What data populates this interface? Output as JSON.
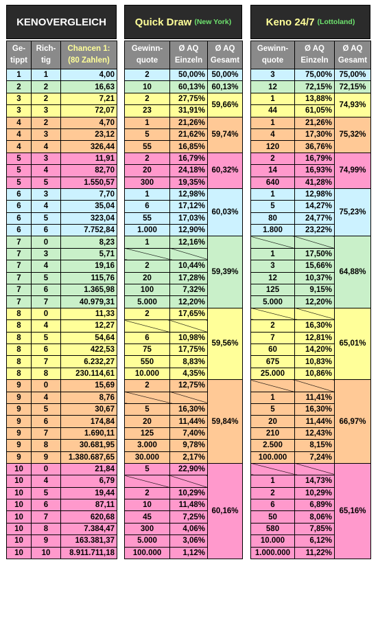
{
  "title_left": "KENOVERGLEICH",
  "qd_title": "Quick Draw",
  "qd_sub": "(New York)",
  "keno_title": "Keno 24/7",
  "keno_sub": "(Lottoland)",
  "headers": {
    "getippt": "Ge-\ntippt",
    "richtig": "Rich-\ntig",
    "chancen": "Chancen 1:\n(80 Zahlen)",
    "gewinnquote": "Gewinn-\nquote",
    "aq_einzeln": "Ø AQ\nEinzeln",
    "aq_gesamt": "Ø AQ\nGesamt"
  },
  "colors": {
    "1": "#ccf2ff",
    "2": "#c9f0c9",
    "3": "#ffff99",
    "4": "#ffc996",
    "5": "#ff99cc",
    "6": "#ccf2ff",
    "7": "#c9f0c9",
    "8": "#ffff99",
    "9": "#ffc996",
    "10": "#ff99cc"
  },
  "rows": [
    {
      "g": "1",
      "r": "1",
      "ch": "4,00",
      "qq": "2",
      "qa": "50,00%",
      "kq": "3",
      "ka": "75,00%"
    },
    {
      "g": "2",
      "r": "2",
      "ch": "16,63",
      "qq": "10",
      "qa": "60,13%",
      "kq": "12",
      "ka": "72,15%"
    },
    {
      "g": "3",
      "r": "2",
      "ch": "7,21",
      "qq": "2",
      "qa": "27,75%",
      "kq": "1",
      "ka": "13,88%"
    },
    {
      "g": "3",
      "r": "3",
      "ch": "72,07",
      "qq": "23",
      "qa": "31,91%",
      "kq": "44",
      "ka": "61,05%"
    },
    {
      "g": "4",
      "r": "2",
      "ch": "4,70",
      "qq": "1",
      "qa": "21,26%",
      "kq": "1",
      "ka": "21,26%"
    },
    {
      "g": "4",
      "r": "3",
      "ch": "23,12",
      "qq": "5",
      "qa": "21,62%",
      "kq": "4",
      "ka": "17,30%"
    },
    {
      "g": "4",
      "r": "4",
      "ch": "326,44",
      "qq": "55",
      "qa": "16,85%",
      "kq": "120",
      "ka": "36,76%"
    },
    {
      "g": "5",
      "r": "3",
      "ch": "11,91",
      "qq": "2",
      "qa": "16,79%",
      "kq": "2",
      "ka": "16,79%"
    },
    {
      "g": "5",
      "r": "4",
      "ch": "82,70",
      "qq": "20",
      "qa": "24,18%",
      "kq": "14",
      "ka": "16,93%"
    },
    {
      "g": "5",
      "r": "5",
      "ch": "1.550,57",
      "qq": "300",
      "qa": "19,35%",
      "kq": "640",
      "ka": "41,28%"
    },
    {
      "g": "6",
      "r": "3",
      "ch": "7,70",
      "qq": "1",
      "qa": "12,98%",
      "kq": "1",
      "ka": "12,98%"
    },
    {
      "g": "6",
      "r": "4",
      "ch": "35,04",
      "qq": "6",
      "qa": "17,12%",
      "kq": "5",
      "ka": "14,27%"
    },
    {
      "g": "6",
      "r": "5",
      "ch": "323,04",
      "qq": "55",
      "qa": "17,03%",
      "kq": "80",
      "ka": "24,77%"
    },
    {
      "g": "6",
      "r": "6",
      "ch": "7.752,84",
      "qq": "1.000",
      "qa": "12,90%",
      "kq": "1.800",
      "ka": "23,22%"
    },
    {
      "g": "7",
      "r": "0",
      "ch": "8,23",
      "qq": "1",
      "qa": "12,16%",
      "kq": "",
      "ka": ""
    },
    {
      "g": "7",
      "r": "3",
      "ch": "5,71",
      "qq": "",
      "qa": "",
      "kq": "1",
      "ka": "17,50%"
    },
    {
      "g": "7",
      "r": "4",
      "ch": "19,16",
      "qq": "2",
      "qa": "10,44%",
      "kq": "3",
      "ka": "15,66%"
    },
    {
      "g": "7",
      "r": "5",
      "ch": "115,76",
      "qq": "20",
      "qa": "17,28%",
      "kq": "12",
      "ka": "10,37%"
    },
    {
      "g": "7",
      "r": "6",
      "ch": "1.365,98",
      "qq": "100",
      "qa": "7,32%",
      "kq": "125",
      "ka": "9,15%"
    },
    {
      "g": "7",
      "r": "7",
      "ch": "40.979,31",
      "qq": "5.000",
      "qa": "12,20%",
      "kq": "5.000",
      "ka": "12,20%"
    },
    {
      "g": "8",
      "r": "0",
      "ch": "11,33",
      "qq": "2",
      "qa": "17,65%",
      "kq": "",
      "ka": ""
    },
    {
      "g": "8",
      "r": "4",
      "ch": "12,27",
      "qq": "",
      "qa": "",
      "kq": "2",
      "ka": "16,30%"
    },
    {
      "g": "8",
      "r": "5",
      "ch": "54,64",
      "qq": "6",
      "qa": "10,98%",
      "kq": "7",
      "ka": "12,81%"
    },
    {
      "g": "8",
      "r": "6",
      "ch": "422,53",
      "qq": "75",
      "qa": "17,75%",
      "kq": "60",
      "ka": "14,20%"
    },
    {
      "g": "8",
      "r": "7",
      "ch": "6.232,27",
      "qq": "550",
      "qa": "8,83%",
      "kq": "675",
      "ka": "10,83%"
    },
    {
      "g": "8",
      "r": "8",
      "ch": "230.114,61",
      "qq": "10.000",
      "qa": "4,35%",
      "kq": "25.000",
      "ka": "10,86%"
    },
    {
      "g": "9",
      "r": "0",
      "ch": "15,69",
      "qq": "2",
      "qa": "12,75%",
      "kq": "",
      "ka": ""
    },
    {
      "g": "9",
      "r": "4",
      "ch": "8,76",
      "qq": "",
      "qa": "",
      "kq": "1",
      "ka": "11,41%"
    },
    {
      "g": "9",
      "r": "5",
      "ch": "30,67",
      "qq": "5",
      "qa": "16,30%",
      "kq": "5",
      "ka": "16,30%"
    },
    {
      "g": "9",
      "r": "6",
      "ch": "174,84",
      "qq": "20",
      "qa": "11,44%",
      "kq": "20",
      "ka": "11,44%"
    },
    {
      "g": "9",
      "r": "7",
      "ch": "1.690,11",
      "qq": "125",
      "qa": "7,40%",
      "kq": "210",
      "ka": "12,43%"
    },
    {
      "g": "9",
      "r": "8",
      "ch": "30.681,95",
      "qq": "3.000",
      "qa": "9,78%",
      "kq": "2.500",
      "ka": "8,15%"
    },
    {
      "g": "9",
      "r": "9",
      "ch": "1.380.687,65",
      "qq": "30.000",
      "qa": "2,17%",
      "kq": "100.000",
      "ka": "7,24%"
    },
    {
      "g": "10",
      "r": "0",
      "ch": "21,84",
      "qq": "5",
      "qa": "22,90%",
      "kq": "",
      "ka": ""
    },
    {
      "g": "10",
      "r": "4",
      "ch": "6,79",
      "qq": "",
      "qa": "",
      "kq": "1",
      "ka": "14,73%"
    },
    {
      "g": "10",
      "r": "5",
      "ch": "19,44",
      "qq": "2",
      "qa": "10,29%",
      "kq": "2",
      "ka": "10,29%"
    },
    {
      "g": "10",
      "r": "6",
      "ch": "87,11",
      "qq": "10",
      "qa": "11,48%",
      "kq": "6",
      "ka": "6,89%"
    },
    {
      "g": "10",
      "r": "7",
      "ch": "620,68",
      "qq": "45",
      "qa": "7,25%",
      "kq": "50",
      "ka": "8,06%"
    },
    {
      "g": "10",
      "r": "8",
      "ch": "7.384,47",
      "qq": "300",
      "qa": "4,06%",
      "kq": "580",
      "ka": "7,85%"
    },
    {
      "g": "10",
      "r": "9",
      "ch": "163.381,37",
      "qq": "5.000",
      "qa": "3,06%",
      "kq": "10.000",
      "ka": "6,12%"
    },
    {
      "g": "10",
      "r": "10",
      "ch": "8.911.711,18",
      "qq": "100.000",
      "qa": "1,12%",
      "kq": "1.000.000",
      "ka": "11,22%"
    }
  ],
  "qd_gesamt": [
    {
      "g": "1",
      "v": "50,00%"
    },
    {
      "g": "2",
      "v": "60,13%"
    },
    {
      "g": "3",
      "v": "59,66%"
    },
    {
      "g": "4",
      "v": "59,74%"
    },
    {
      "g": "5",
      "v": "60,32%"
    },
    {
      "g": "6",
      "v": "60,03%"
    },
    {
      "g": "7",
      "v": "59,39%"
    },
    {
      "g": "8",
      "v": "59,56%"
    },
    {
      "g": "9",
      "v": "59,84%"
    },
    {
      "g": "10",
      "v": "60,16%"
    }
  ],
  "keno_gesamt": [
    {
      "g": "1",
      "v": "75,00%"
    },
    {
      "g": "2",
      "v": "72,15%"
    },
    {
      "g": "3",
      "v": "74,93%"
    },
    {
      "g": "4",
      "v": "75,32%"
    },
    {
      "g": "5",
      "v": "74,99%"
    },
    {
      "g": "6",
      "v": "75,23%"
    },
    {
      "g": "7",
      "v": "64,88%"
    },
    {
      "g": "8",
      "v": "65,01%"
    },
    {
      "g": "9",
      "v": "66,97%"
    },
    {
      "g": "10",
      "v": "65,16%"
    }
  ]
}
